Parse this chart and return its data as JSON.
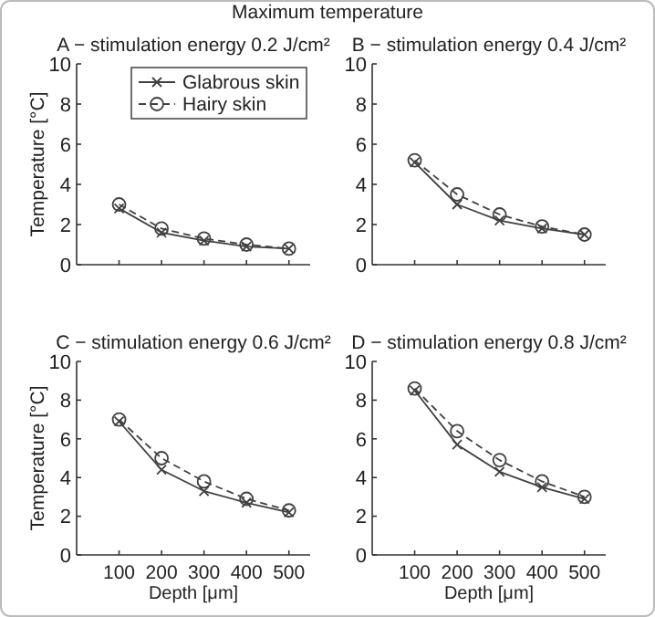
{
  "chart_data": [
    {
      "type": "line",
      "title": "A − stimulation energy 0.2 J/cm²",
      "ylabel": "Temperature [°C]",
      "annotations": [
        "Maximum temperature"
      ],
      "x": [
        100,
        200,
        300,
        400,
        500
      ],
      "xlim": [
        0,
        550
      ],
      "xticks": [
        100,
        200,
        300,
        400,
        500
      ],
      "ylim": [
        0,
        10
      ],
      "yticks": [
        0,
        2,
        4,
        6,
        8,
        10
      ],
      "tick_labels": "y",
      "legend": "top right",
      "grid": false,
      "series": [
        {
          "name": "Glabrous skin",
          "color": "#404040",
          "marker": "cross",
          "line_style": "solid",
          "values": [
            2.8,
            1.6,
            1.2,
            0.9,
            0.8
          ]
        },
        {
          "name": "Hairy skin",
          "color": "#404040",
          "marker": "circle",
          "line_style": "dashed",
          "values": [
            3.0,
            1.8,
            1.3,
            1.0,
            0.8
          ]
        }
      ]
    },
    {
      "type": "line",
      "title": "B − stimulation energy 0.4 J/cm²",
      "x": [
        100,
        200,
        300,
        400,
        500
      ],
      "xlim": [
        0,
        550
      ],
      "xticks": [
        100,
        200,
        300,
        400,
        500
      ],
      "ylim": [
        0,
        10
      ],
      "yticks": [
        0,
        2,
        4,
        6,
        8,
        10
      ],
      "tick_labels": "y",
      "grid": false,
      "series": [
        {
          "color": "#404040",
          "marker": "cross",
          "line_style": "solid",
          "values": [
            5.1,
            3.0,
            2.2,
            1.8,
            1.5
          ]
        },
        {
          "color": "#404040",
          "marker": "circle",
          "line_style": "dashed",
          "values": [
            5.2,
            3.5,
            2.5,
            1.9,
            1.5
          ]
        }
      ]
    },
    {
      "type": "line",
      "title": "C − stimulation energy 0.6 J/cm²",
      "xlabel": "Depth [μm]",
      "ylabel": "Temperature [°C]",
      "x": [
        100,
        200,
        300,
        400,
        500
      ],
      "xlim": [
        0,
        550
      ],
      "xticks": [
        100,
        200,
        300,
        400,
        500
      ],
      "ylim": [
        0,
        10
      ],
      "yticks": [
        0,
        2,
        4,
        6,
        8,
        10
      ],
      "grid": false,
      "series": [
        {
          "color": "#404040",
          "marker": "cross",
          "line_style": "solid",
          "values": [
            6.9,
            4.4,
            3.3,
            2.7,
            2.2
          ]
        },
        {
          "color": "#404040",
          "marker": "circle",
          "line_style": "dashed",
          "values": [
            7.0,
            5.0,
            3.8,
            2.9,
            2.3
          ]
        }
      ]
    },
    {
      "type": "line",
      "title": "D − stimulation energy 0.8 J/cm²",
      "xlabel": "Depth [μm]",
      "x": [
        100,
        200,
        300,
        400,
        500
      ],
      "xlim": [
        0,
        550
      ],
      "xticks": [
        100,
        200,
        300,
        400,
        500
      ],
      "ylim": [
        0,
        10
      ],
      "yticks": [
        0,
        2,
        4,
        6,
        8,
        10
      ],
      "grid": false,
      "series": [
        {
          "color": "#404040",
          "marker": "cross",
          "line_style": "solid",
          "values": [
            8.5,
            5.7,
            4.3,
            3.5,
            2.9
          ]
        },
        {
          "color": "#404040",
          "marker": "circle",
          "line_style": "dashed",
          "values": [
            8.6,
            6.4,
            4.9,
            3.8,
            3.0
          ]
        }
      ]
    }
  ]
}
